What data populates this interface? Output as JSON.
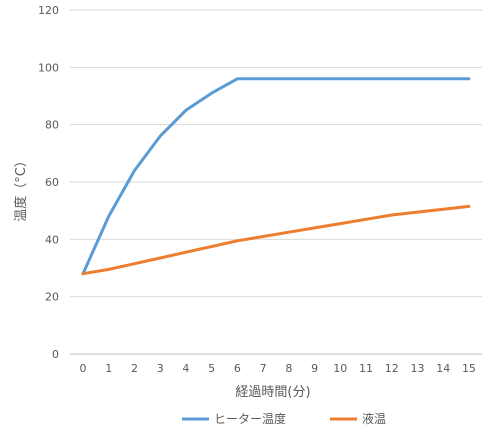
{
  "chart_data": {
    "type": "line",
    "x": [
      0,
      1,
      2,
      3,
      4,
      5,
      6,
      7,
      8,
      9,
      10,
      11,
      12,
      13,
      14,
      15
    ],
    "x_tick_labels": [
      "0",
      "1",
      "2",
      "3",
      "4",
      "5",
      "6",
      "7",
      "8",
      "9",
      "10",
      "11",
      "12",
      "13",
      "14",
      "15"
    ],
    "y_tick_labels": [
      "0",
      "20",
      "40",
      "60",
      "80",
      "100",
      "120"
    ],
    "y_ticks": [
      0,
      20,
      40,
      60,
      80,
      100,
      120
    ],
    "series": [
      {
        "name": "ヒーター温度",
        "color": "#5B9BD5",
        "values": [
          28,
          48,
          64,
          76,
          85,
          91,
          96,
          96,
          96,
          96,
          96,
          96,
          96,
          96,
          96,
          96
        ]
      },
      {
        "name": "液温",
        "color": "#ED7D31",
        "values": [
          28,
          29.5,
          31.5,
          33.5,
          35.5,
          37.5,
          39.5,
          41,
          42.5,
          44,
          45.5,
          47,
          48.5,
          49.5,
          50.5,
          51.5
        ]
      }
    ],
    "title": "",
    "xlabel": "経過時間(分)",
    "ylabel": "温度（°C）",
    "ylim": [
      0,
      120
    ],
    "grid": true,
    "legend_position": "bottom"
  }
}
